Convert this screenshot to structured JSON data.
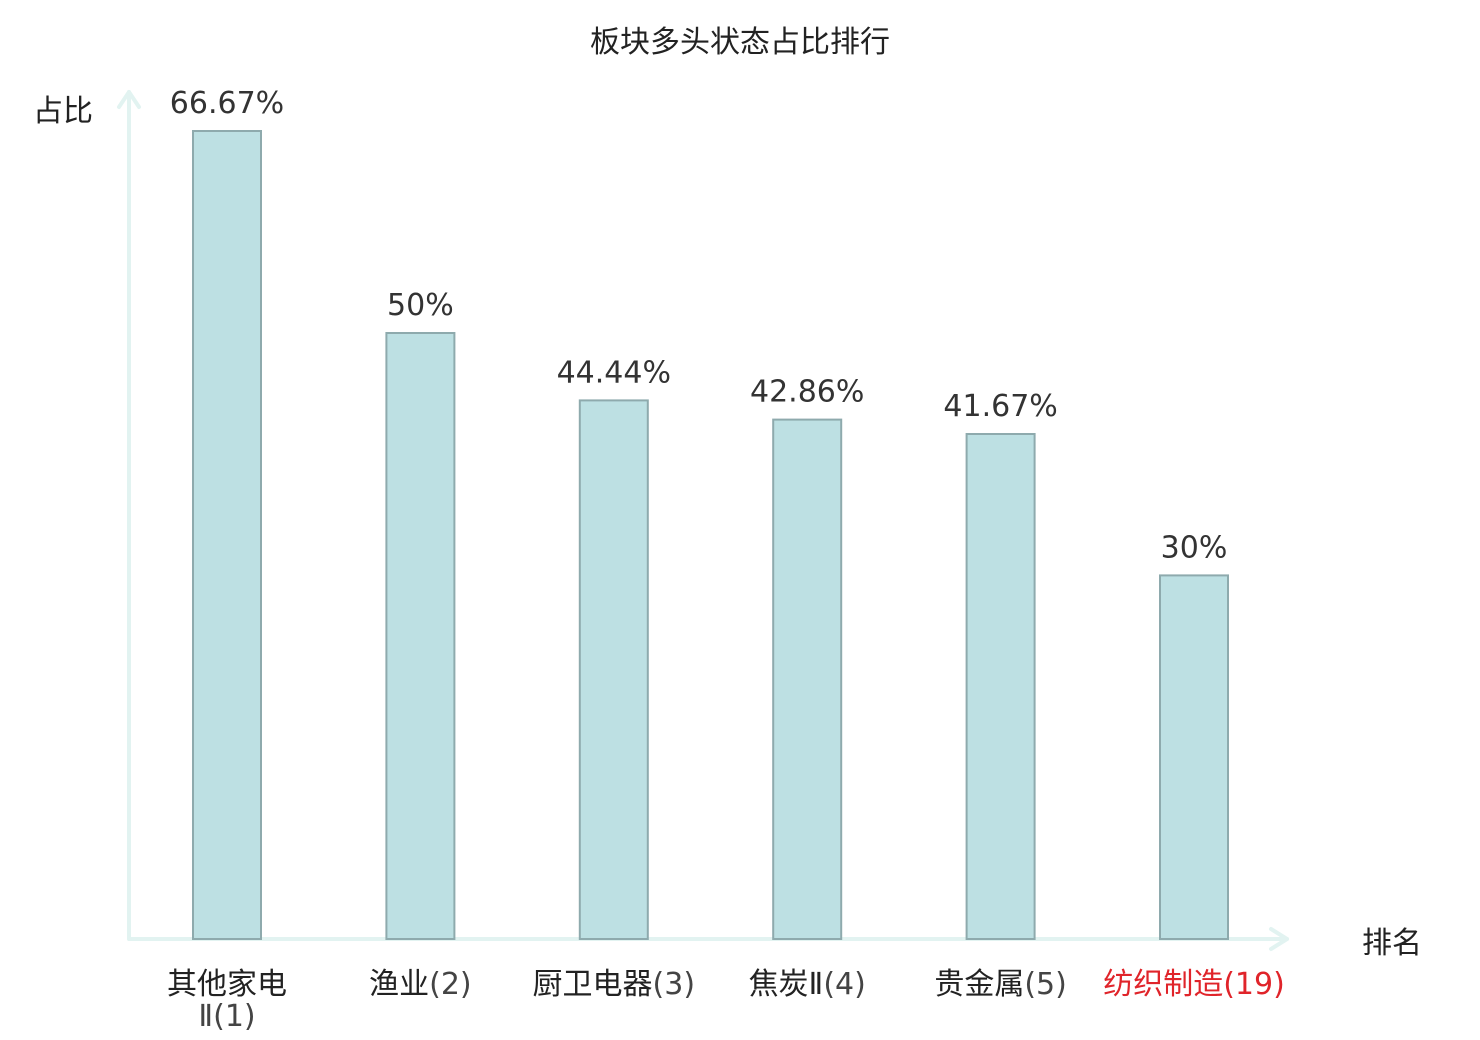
{
  "chart_data": {
    "type": "bar",
    "title": "板块多头状态占比排行",
    "xlabel": "排名",
    "ylabel": "占比",
    "categories": [
      {
        "name": "其他家电Ⅱ",
        "rank": "(1)",
        "highlight": false
      },
      {
        "name": "渔业",
        "rank": "(2)",
        "highlight": false
      },
      {
        "name": "厨卫电器",
        "rank": "(3)",
        "highlight": false
      },
      {
        "name": "焦炭Ⅱ",
        "rank": "(4)",
        "highlight": false
      },
      {
        "name": "贵金属",
        "rank": "(5)",
        "highlight": false
      },
      {
        "name": "纺织制造",
        "rank": "(19)",
        "highlight": true
      }
    ],
    "values": [
      66.67,
      50,
      44.44,
      42.86,
      41.67,
      30
    ],
    "value_labels": [
      "66.67%",
      "50%",
      "44.44%",
      "42.86%",
      "41.67%",
      "30%"
    ],
    "ylim": [
      0,
      66.67
    ],
    "grid": false,
    "colors": {
      "bar_fill": "#bde0e3",
      "bar_stroke": "#8eaaad",
      "axis": "#e2f3f1",
      "highlight_label": "#e0242a",
      "text": "#222222",
      "rank_text": "#444444"
    }
  }
}
